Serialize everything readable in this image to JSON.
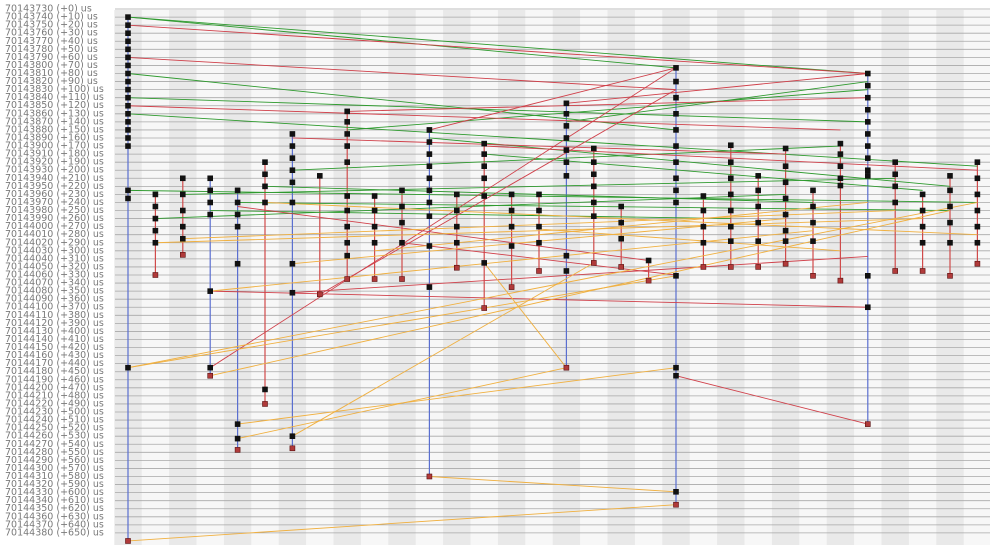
{
  "chart_data": {
    "type": "trace",
    "ylim": [
      70143725,
      70144395
    ],
    "yticks": [
      {
        "value": 70143730,
        "label": "70143730 (+0) us"
      },
      {
        "value": 70143740,
        "label": "70143740 (+10) us"
      },
      {
        "value": 70143750,
        "label": "70143750 (+20) us"
      },
      {
        "value": 70143760,
        "label": "70143760 (+30) us"
      },
      {
        "value": 70143770,
        "label": "70143770 (+40) us"
      },
      {
        "value": 70143780,
        "label": "70143780 (+50) us"
      },
      {
        "value": 70143790,
        "label": "70143790 (+60) us"
      },
      {
        "value": 70143800,
        "label": "70143800 (+70) us"
      },
      {
        "value": 70143810,
        "label": "70143810 (+80) us"
      },
      {
        "value": 70143820,
        "label": "70143820 (+90) us"
      },
      {
        "value": 70143830,
        "label": "70143830 (+100) us"
      },
      {
        "value": 70143840,
        "label": "70143840 (+110) us"
      },
      {
        "value": 70143850,
        "label": "70143850 (+120) us"
      },
      {
        "value": 70143860,
        "label": "70143860 (+130) us"
      },
      {
        "value": 70143870,
        "label": "70143870 (+140) us"
      },
      {
        "value": 70143880,
        "label": "70143880 (+150) us"
      },
      {
        "value": 70143890,
        "label": "70143890 (+160) us"
      },
      {
        "value": 70143900,
        "label": "70143900 (+170) us"
      },
      {
        "value": 70143910,
        "label": "70143910 (+180) us"
      },
      {
        "value": 70143920,
        "label": "70143920 (+190) us"
      },
      {
        "value": 70143930,
        "label": "70143930 (+200) us"
      },
      {
        "value": 70143940,
        "label": "70143940 (+210) us"
      },
      {
        "value": 70143950,
        "label": "70143950 (+220) us"
      },
      {
        "value": 70143960,
        "label": "70143960 (+230) us"
      },
      {
        "value": 70143970,
        "label": "70143970 (+240) us"
      },
      {
        "value": 70143980,
        "label": "70143980 (+250) us"
      },
      {
        "value": 70143990,
        "label": "70143990 (+260) us"
      },
      {
        "value": 70144000,
        "label": "70144000 (+270) us"
      },
      {
        "value": 70144010,
        "label": "70144010 (+280) us"
      },
      {
        "value": 70144020,
        "label": "70144020 (+290) us"
      },
      {
        "value": 70144030,
        "label": "70144030 (+300) us"
      },
      {
        "value": 70144040,
        "label": "70144040 (+310) us"
      },
      {
        "value": 70144050,
        "label": "70144050 (+320) us"
      },
      {
        "value": 70144060,
        "label": "70144060 (+330) us"
      },
      {
        "value": 70144070,
        "label": "70144070 (+340) us"
      },
      {
        "value": 70144080,
        "label": "70144080 (+350) us"
      },
      {
        "value": 70144090,
        "label": "70144090 (+360) us"
      },
      {
        "value": 70144100,
        "label": "70144100 (+370) us"
      },
      {
        "value": 70144110,
        "label": "70144110 (+380) us"
      },
      {
        "value": 70144120,
        "label": "70144120 (+390) us"
      },
      {
        "value": 70144130,
        "label": "70144130 (+400) us"
      },
      {
        "value": 70144140,
        "label": "70144140 (+410) us"
      },
      {
        "value": 70144150,
        "label": "70144150 (+420) us"
      },
      {
        "value": 70144160,
        "label": "70144160 (+430) us"
      },
      {
        "value": 70144170,
        "label": "70144170 (+440) us"
      },
      {
        "value": 70144180,
        "label": "70144180 (+450) us"
      },
      {
        "value": 70144190,
        "label": "70144190 (+460) us"
      },
      {
        "value": 70144200,
        "label": "70144200 (+470) us"
      },
      {
        "value": 70144210,
        "label": "70144210 (+480) us"
      },
      {
        "value": 70144220,
        "label": "70144220 (+490) us"
      },
      {
        "value": 70144230,
        "label": "70144230 (+500) us"
      },
      {
        "value": 70144240,
        "label": "70144240 (+510) us"
      },
      {
        "value": 70144250,
        "label": "70144250 (+520) us"
      },
      {
        "value": 70144260,
        "label": "70144260 (+530) us"
      },
      {
        "value": 70144270,
        "label": "70144270 (+540) us"
      },
      {
        "value": 70144280,
        "label": "70144280 (+550) us"
      },
      {
        "value": 70144290,
        "label": "70144290 (+560) us"
      },
      {
        "value": 70144300,
        "label": "70144300 (+570) us"
      },
      {
        "value": 70144310,
        "label": "70144310 (+580) us"
      },
      {
        "value": 70144320,
        "label": "70144320 (+590) us"
      },
      {
        "value": 70144330,
        "label": "70144330 (+600) us"
      },
      {
        "value": 70144340,
        "label": "70144340 (+610) us"
      },
      {
        "value": 70144350,
        "label": "70144350 (+620) us"
      },
      {
        "value": 70144360,
        "label": "70144360 (+630) us"
      },
      {
        "value": 70144370,
        "label": "70144370 (+640) us"
      },
      {
        "value": 70144380,
        "label": "70144380 (+650) us"
      }
    ],
    "grid": true,
    "lanes": [
      {
        "color": "#5a6fd0",
        "events": [
          70143740,
          70143750,
          70143760,
          70143770,
          70143780,
          70143790,
          70143800,
          70143810,
          70143820,
          70143830,
          70143840,
          70143850,
          70143860,
          70143870,
          70143880,
          70143890,
          70143900,
          70143955,
          70143965,
          70144175,
          70144390
        ]
      },
      {
        "color": "#d04a4a",
        "events": [
          70143960,
          70143975,
          70143990,
          70144005,
          70144020,
          70144060
        ]
      },
      {
        "color": "#d04a4a",
        "events": [
          70143940,
          70143960,
          70143980,
          70144000,
          70144015,
          70144035
        ]
      },
      {
        "color": "#5a6fd0",
        "events": [
          70143940,
          70143955,
          70143970,
          70143985,
          70144080,
          70144175,
          70144185
        ]
      },
      {
        "color": "#5a6fd0",
        "events": [
          70143955,
          70143970,
          70143985,
          70144000,
          70144046,
          70144245,
          70144263,
          70144277
        ]
      },
      {
        "color": "#d04a4a",
        "events": [
          70143920,
          70143935,
          70143950,
          70143970,
          70144202,
          70144220
        ]
      },
      {
        "color": "#5a6fd0",
        "events": [
          70143885,
          70143900,
          70143915,
          70143930,
          70143945,
          70143970,
          70144046,
          70144082,
          70144260,
          70144275
        ]
      },
      {
        "color": "#d04a4a",
        "events": [
          70143937,
          70144084
        ]
      },
      {
        "color": "#d04a4a",
        "events": [
          70143857,
          70143870,
          70143885,
          70143900,
          70143920,
          70143962,
          70143980,
          70144000,
          70144020,
          70144036,
          70144065
        ]
      },
      {
        "color": "#d04a4a",
        "events": [
          70143962,
          70143980,
          70144000,
          70144020,
          70144065
        ]
      },
      {
        "color": "#d04a4a",
        "events": [
          70143955,
          70143975,
          70143995,
          70144020,
          70144065
        ]
      },
      {
        "color": "#5a6fd0",
        "events": [
          70143880,
          70143895,
          70143910,
          70143925,
          70143940,
          70143955,
          70143970,
          70143987,
          70144024,
          70144075,
          70144310
        ]
      },
      {
        "color": "#d04a4a",
        "events": [
          70143960,
          70143980,
          70144000,
          70144020,
          70144051
        ]
      },
      {
        "color": "#d04a4a",
        "events": [
          70143897,
          70143910,
          70143925,
          70143940,
          70143962,
          70144045,
          70144101
        ]
      },
      {
        "color": "#d04a4a",
        "events": [
          70143960,
          70143980,
          70144000,
          70144024,
          70144075
        ]
      },
      {
        "color": "#d04a4a",
        "events": [
          70143960,
          70143980,
          70144000,
          70144020,
          70144055
        ]
      },
      {
        "color": "#5a6fd0",
        "events": [
          70143847,
          70143860,
          70143875,
          70143890,
          70143905,
          70143920,
          70143937,
          70144036,
          70144055,
          70144175
        ]
      },
      {
        "color": "#d04a4a",
        "events": [
          70143903,
          70143920,
          70143935,
          70143950,
          70143970,
          70143987,
          70144045
        ]
      },
      {
        "color": "#d04a4a",
        "events": [
          70143975,
          70143995,
          70144015,
          70144050
        ]
      },
      {
        "color": "#d04a4a",
        "events": [
          70144042,
          70144067
        ]
      },
      {
        "color": "#5a6fd0",
        "events": [
          70143803,
          70143820,
          70143840,
          70143860,
          70143880,
          70143900,
          70143920,
          70143940,
          70143955,
          70143970,
          70144061,
          70144175,
          70144185,
          70144329,
          70144345
        ]
      },
      {
        "color": "#d04a4a",
        "events": [
          70143962,
          70143980,
          70144000,
          70144020,
          70144050
        ]
      },
      {
        "color": "#d04a4a",
        "events": [
          70143899,
          70143920,
          70143940,
          70143960,
          70143980,
          70144000,
          70144018,
          70144050
        ]
      },
      {
        "color": "#d04a4a",
        "events": [
          70143937,
          70143955,
          70143975,
          70143995,
          70144018,
          70144050
        ]
      },
      {
        "color": "#d04a4a",
        "events": [
          70143903,
          70143925,
          70143945,
          70143965,
          70143985,
          70144005,
          70144018,
          70144046
        ]
      },
      {
        "color": "#d04a4a",
        "events": [
          70143955,
          70143975,
          70143995,
          70144018,
          70144061
        ]
      },
      {
        "color": "#d04a4a",
        "events": [
          70143897,
          70143910,
          70143925,
          70143940,
          70143949,
          70144067
        ]
      },
      {
        "color": "#5a6fd0",
        "events": [
          70143810,
          70143825,
          70143840,
          70143855,
          70143870,
          70143885,
          70143900,
          70143915,
          70143930,
          70143937,
          70144061,
          70144100,
          70144245
        ]
      },
      {
        "color": "#d04a4a",
        "events": [
          70143920,
          70143935,
          70143950,
          70143970,
          70144055
        ]
      },
      {
        "color": "#d04a4a",
        "events": [
          70143960,
          70143980,
          70144000,
          70144020,
          70144055
        ]
      },
      {
        "color": "#d04a4a",
        "events": [
          70143937,
          70143955,
          70143975,
          70143995,
          70144020,
          70144061
        ]
      },
      {
        "color": "#d04a4a",
        "events": [
          70143920,
          70143940,
          70143960,
          70143980,
          70144000,
          70144020,
          70144046
        ]
      }
    ],
    "series": [
      {
        "color": "#2e9a2e",
        "links": [
          [
            0,
            70143740,
            27,
            70143810
          ],
          [
            0,
            70143740,
            20,
            70143803
          ],
          [
            0,
            70143810,
            20,
            70143880
          ],
          [
            0,
            70143840,
            27,
            70143870
          ],
          [
            0,
            70143860,
            31,
            70143925
          ],
          [
            8,
            70143880,
            27,
            70143830
          ],
          [
            11,
            70143890,
            30,
            70143950
          ],
          [
            0,
            70143955,
            31,
            70143970
          ],
          [
            13,
            70143910,
            29,
            70143955
          ],
          [
            16,
            70143870,
            27,
            70143820
          ],
          [
            6,
            70143930,
            26,
            70143900
          ],
          [
            2,
            70143960,
            28,
            70143940
          ],
          [
            4,
            70143970,
            30,
            70143980
          ],
          [
            1,
            70143990,
            24,
            70143960
          ],
          [
            3,
            70143980,
            22,
            70143990
          ],
          [
            5,
            70143950,
            25,
            70143970
          ]
        ]
      },
      {
        "color": "#d0404a",
        "links": [
          [
            0,
            70143750,
            27,
            70143810
          ],
          [
            0,
            70143790,
            20,
            70143830
          ],
          [
            8,
            70143857,
            27,
            70143840
          ],
          [
            11,
            70143880,
            20,
            70143803
          ],
          [
            0,
            70143850,
            26,
            70143880
          ],
          [
            6,
            70143890,
            24,
            70143910
          ],
          [
            13,
            70143900,
            31,
            70143930
          ],
          [
            16,
            70143847,
            27,
            70143810
          ],
          [
            4,
            70143975,
            19,
            70144042
          ],
          [
            10,
            70144020,
            20,
            70144060
          ],
          [
            3,
            70144080,
            27,
            70144100
          ],
          [
            20,
            70144185,
            27,
            70144245
          ],
          [
            3,
            70144175,
            20,
            70143803
          ],
          [
            7,
            70144084,
            20,
            70143830
          ],
          [
            6,
            70144082,
            27,
            70144037
          ]
        ]
      },
      {
        "color": "#f0b040",
        "links": [
          [
            0,
            70144175,
            20,
            70144061
          ],
          [
            0,
            70144175,
            31,
            70143970
          ],
          [
            3,
            70144185,
            30,
            70143980
          ],
          [
            4,
            70144245,
            20,
            70144175
          ],
          [
            4,
            70144263,
            16,
            70144175
          ],
          [
            6,
            70144260,
            17,
            70144045
          ],
          [
            11,
            70144310,
            20,
            70144329
          ],
          [
            0,
            70144390,
            20,
            70144345
          ],
          [
            3,
            70144080,
            25,
            70144005
          ],
          [
            1,
            70144020,
            29,
            70143990
          ],
          [
            2,
            70144015,
            28,
            70143980
          ],
          [
            5,
            70143970,
            31,
            70144010
          ],
          [
            9,
            70144030,
            27,
            70143970
          ],
          [
            15,
            70144003,
            26,
            70144030
          ],
          [
            13,
            70144045,
            16,
            70144175
          ],
          [
            6,
            70144046,
            24,
            70143990
          ]
        ]
      }
    ]
  }
}
